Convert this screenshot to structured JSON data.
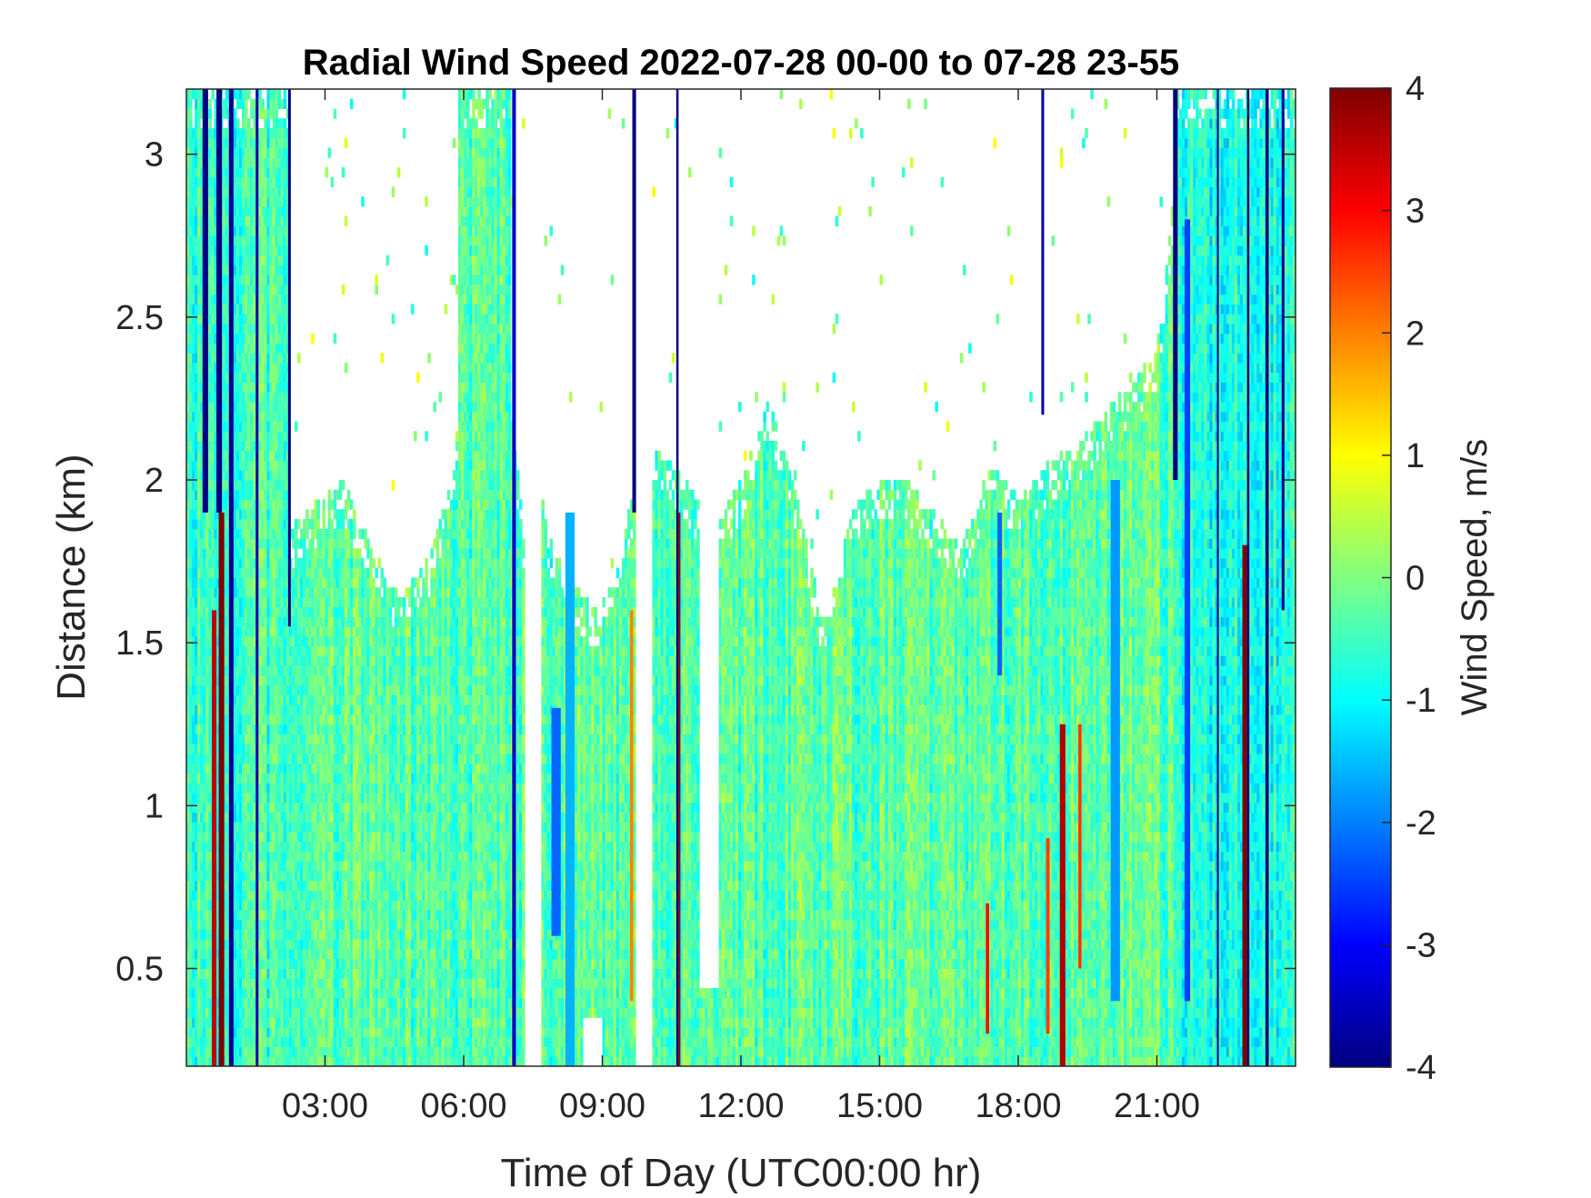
{
  "chart_data": {
    "type": "heatmap",
    "title": "Radial Wind Speed 2022-07-28 00-00 to 07-28 23-55",
    "xlabel": "Time of Day (UTC00:00 hr)",
    "ylabel": "Distance (km)",
    "colorbar_label": "Wind Speed, m/s",
    "x_unit": "hours UTC",
    "xlim": [
      0,
      24
    ],
    "ylim": [
      0.2,
      3.2
    ],
    "clim": [
      -4,
      4
    ],
    "colormap": "jet",
    "missing_color": "#ffffff",
    "x_ticks": [
      3,
      6,
      9,
      12,
      15,
      18,
      21
    ],
    "x_tick_labels": [
      "03:00",
      "06:00",
      "09:00",
      "12:00",
      "15:00",
      "18:00",
      "21:00"
    ],
    "y_ticks": [
      0.5,
      1,
      1.5,
      2,
      2.5,
      3
    ],
    "y_tick_labels": [
      "0.5",
      "1",
      "1.5",
      "2",
      "2.5",
      "3"
    ],
    "c_ticks": [
      -4,
      -3,
      -2,
      -1,
      0,
      1,
      2,
      3,
      4
    ],
    "c_tick_labels": [
      "-4",
      "-3",
      "-2",
      "-1",
      "0",
      "1",
      "2",
      "3",
      "4"
    ],
    "grid": false,
    "base_speed": -0.3,
    "data_top_profile": {
      "hours": [
        0,
        0.3,
        1.5,
        2.2,
        2.6,
        3.0,
        3.4,
        4.0,
        4.6,
        5.2,
        5.8,
        6.2,
        6.6,
        7.0,
        7.3,
        7.6,
        7.9,
        8.3,
        8.8,
        9.3,
        9.7,
        10.2,
        10.8,
        11.4,
        12.0,
        12.6,
        13.2,
        13.8,
        14.4,
        15.0,
        15.6,
        16.2,
        16.8,
        17.4,
        18.0,
        18.6,
        19.2,
        19.8,
        20.4,
        21.0,
        21.6,
        22.4,
        23.2,
        24
      ],
      "top_km": [
        1.9,
        1.9,
        1.9,
        1.85,
        1.9,
        1.95,
        2.0,
        1.8,
        1.65,
        1.75,
        2.05,
        2.15,
        2.3,
        2.25,
        1.85,
        2.0,
        1.8,
        1.7,
        1.6,
        1.7,
        2.0,
        2.1,
        2.0,
        1.85,
        2.0,
        2.25,
        1.95,
        1.55,
        1.9,
        2.0,
        2.0,
        1.9,
        1.8,
        2.05,
        1.95,
        2.05,
        2.1,
        2.2,
        2.3,
        2.4,
        3.2,
        3.2,
        3.2,
        3.2
      ]
    },
    "gaps": [
      {
        "x_start": 7.3,
        "x_end": 7.65,
        "y_start": 0.2,
        "y_end": 3.2
      },
      {
        "x_start": 9.7,
        "x_end": 10.1,
        "y_start": 0.2,
        "y_end": 3.2
      },
      {
        "x_start": 11.1,
        "x_end": 11.5,
        "y_start": 0.45,
        "y_end": 3.2
      },
      {
        "x_start": 8.6,
        "x_end": 9.0,
        "y_start": 0.2,
        "y_end": 0.35
      }
    ],
    "full_height_regions": [
      {
        "x_start": 0.0,
        "x_end": 2.2,
        "speed": -0.5
      },
      {
        "x_start": 5.9,
        "x_end": 7.0,
        "speed": -0.3
      },
      {
        "x_start": 21.4,
        "x_end": 24.0,
        "speed": -0.8
      }
    ],
    "stripes": [
      {
        "x": 0.35,
        "width": 0.12,
        "y_start": 1.9,
        "y_end": 3.2,
        "speed": -4.0
      },
      {
        "x": 0.55,
        "width": 0.1,
        "y_start": 0.2,
        "y_end": 1.6,
        "speed": 3.5
      },
      {
        "x": 0.65,
        "width": 0.12,
        "y_start": 1.9,
        "y_end": 3.2,
        "speed": -4.0
      },
      {
        "x": 0.7,
        "width": 0.12,
        "y_start": 0.2,
        "y_end": 1.9,
        "speed": 4.0
      },
      {
        "x": 0.92,
        "width": 0.1,
        "y_start": 0.2,
        "y_end": 3.2,
        "speed": -3.8
      },
      {
        "x": 1.5,
        "width": 0.06,
        "y_start": 0.2,
        "y_end": 3.2,
        "speed": -3.6
      },
      {
        "x": 2.2,
        "width": 0.06,
        "y_start": 1.55,
        "y_end": 3.2,
        "speed": -4.0
      },
      {
        "x": 7.05,
        "width": 0.08,
        "y_start": 0.2,
        "y_end": 3.2,
        "speed": -3.4
      },
      {
        "x": 7.9,
        "width": 0.2,
        "y_start": 0.6,
        "y_end": 1.3,
        "speed": -2.2
      },
      {
        "x": 8.2,
        "width": 0.2,
        "y_start": 0.2,
        "y_end": 1.9,
        "speed": -1.6
      },
      {
        "x": 9.6,
        "width": 0.07,
        "y_start": 0.4,
        "y_end": 1.6,
        "speed": 2.0
      },
      {
        "x": 9.65,
        "width": 0.08,
        "y_start": 1.9,
        "y_end": 3.2,
        "speed": -4.0
      },
      {
        "x": 10.6,
        "width": 0.05,
        "y_start": 0.2,
        "y_end": 3.2,
        "speed": -4.0
      },
      {
        "x": 10.65,
        "width": 0.04,
        "y_start": 0.2,
        "y_end": 1.9,
        "speed": 3.8
      },
      {
        "x": 17.3,
        "width": 0.07,
        "y_start": 0.3,
        "y_end": 0.7,
        "speed": 3.0
      },
      {
        "x": 17.55,
        "width": 0.1,
        "y_start": 1.4,
        "y_end": 1.9,
        "speed": -2.2
      },
      {
        "x": 18.5,
        "width": 0.06,
        "y_start": 2.2,
        "y_end": 3.2,
        "speed": -3.6
      },
      {
        "x": 18.6,
        "width": 0.08,
        "y_start": 0.3,
        "y_end": 0.9,
        "speed": 2.5
      },
      {
        "x": 18.9,
        "width": 0.12,
        "y_start": 0.2,
        "y_end": 1.25,
        "speed": 3.6
      },
      {
        "x": 19.3,
        "width": 0.07,
        "y_start": 0.5,
        "y_end": 1.25,
        "speed": 2.6
      },
      {
        "x": 20.0,
        "width": 0.2,
        "y_start": 0.4,
        "y_end": 2.0,
        "speed": -1.8
      },
      {
        "x": 21.35,
        "width": 0.1,
        "y_start": 2.0,
        "y_end": 3.2,
        "speed": -4.0
      },
      {
        "x": 21.6,
        "width": 0.12,
        "y_start": 0.4,
        "y_end": 2.8,
        "speed": -2.5
      },
      {
        "x": 22.3,
        "width": 0.04,
        "y_start": 0.2,
        "y_end": 3.2,
        "speed": -4.0
      },
      {
        "x": 22.85,
        "width": 0.1,
        "y_start": 0.2,
        "y_end": 1.8,
        "speed": 4.0
      },
      {
        "x": 22.95,
        "width": 0.05,
        "y_start": 0.2,
        "y_end": 3.2,
        "speed": -4.0
      },
      {
        "x": 23.35,
        "width": 0.07,
        "y_start": 0.2,
        "y_end": 3.2,
        "speed": -4.0
      },
      {
        "x": 23.7,
        "width": 0.06,
        "y_start": 1.6,
        "y_end": 3.2,
        "speed": -3.8
      }
    ]
  }
}
